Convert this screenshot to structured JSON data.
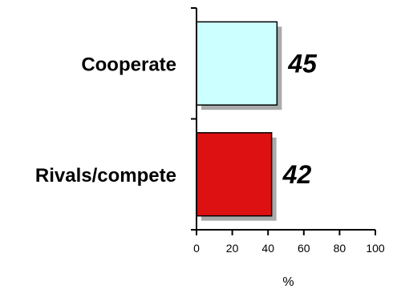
{
  "chart_data": {
    "type": "bar",
    "orientation": "horizontal",
    "categories": [
      "Cooperate",
      "Rivals/compete"
    ],
    "values": [
      45,
      42
    ],
    "data_labels": [
      "45",
      "42"
    ],
    "bar_colors": [
      "#ccffff",
      "#dd1111"
    ],
    "bar_edge_color": "#000000",
    "shadow_color": "#aaaaaa",
    "xlabel": "%",
    "ylabel": "",
    "title": "",
    "xlim": [
      0,
      100
    ],
    "xticks": [
      "0",
      "20",
      "40",
      "60",
      "80",
      "100"
    ],
    "grid": false,
    "legend": "none"
  }
}
